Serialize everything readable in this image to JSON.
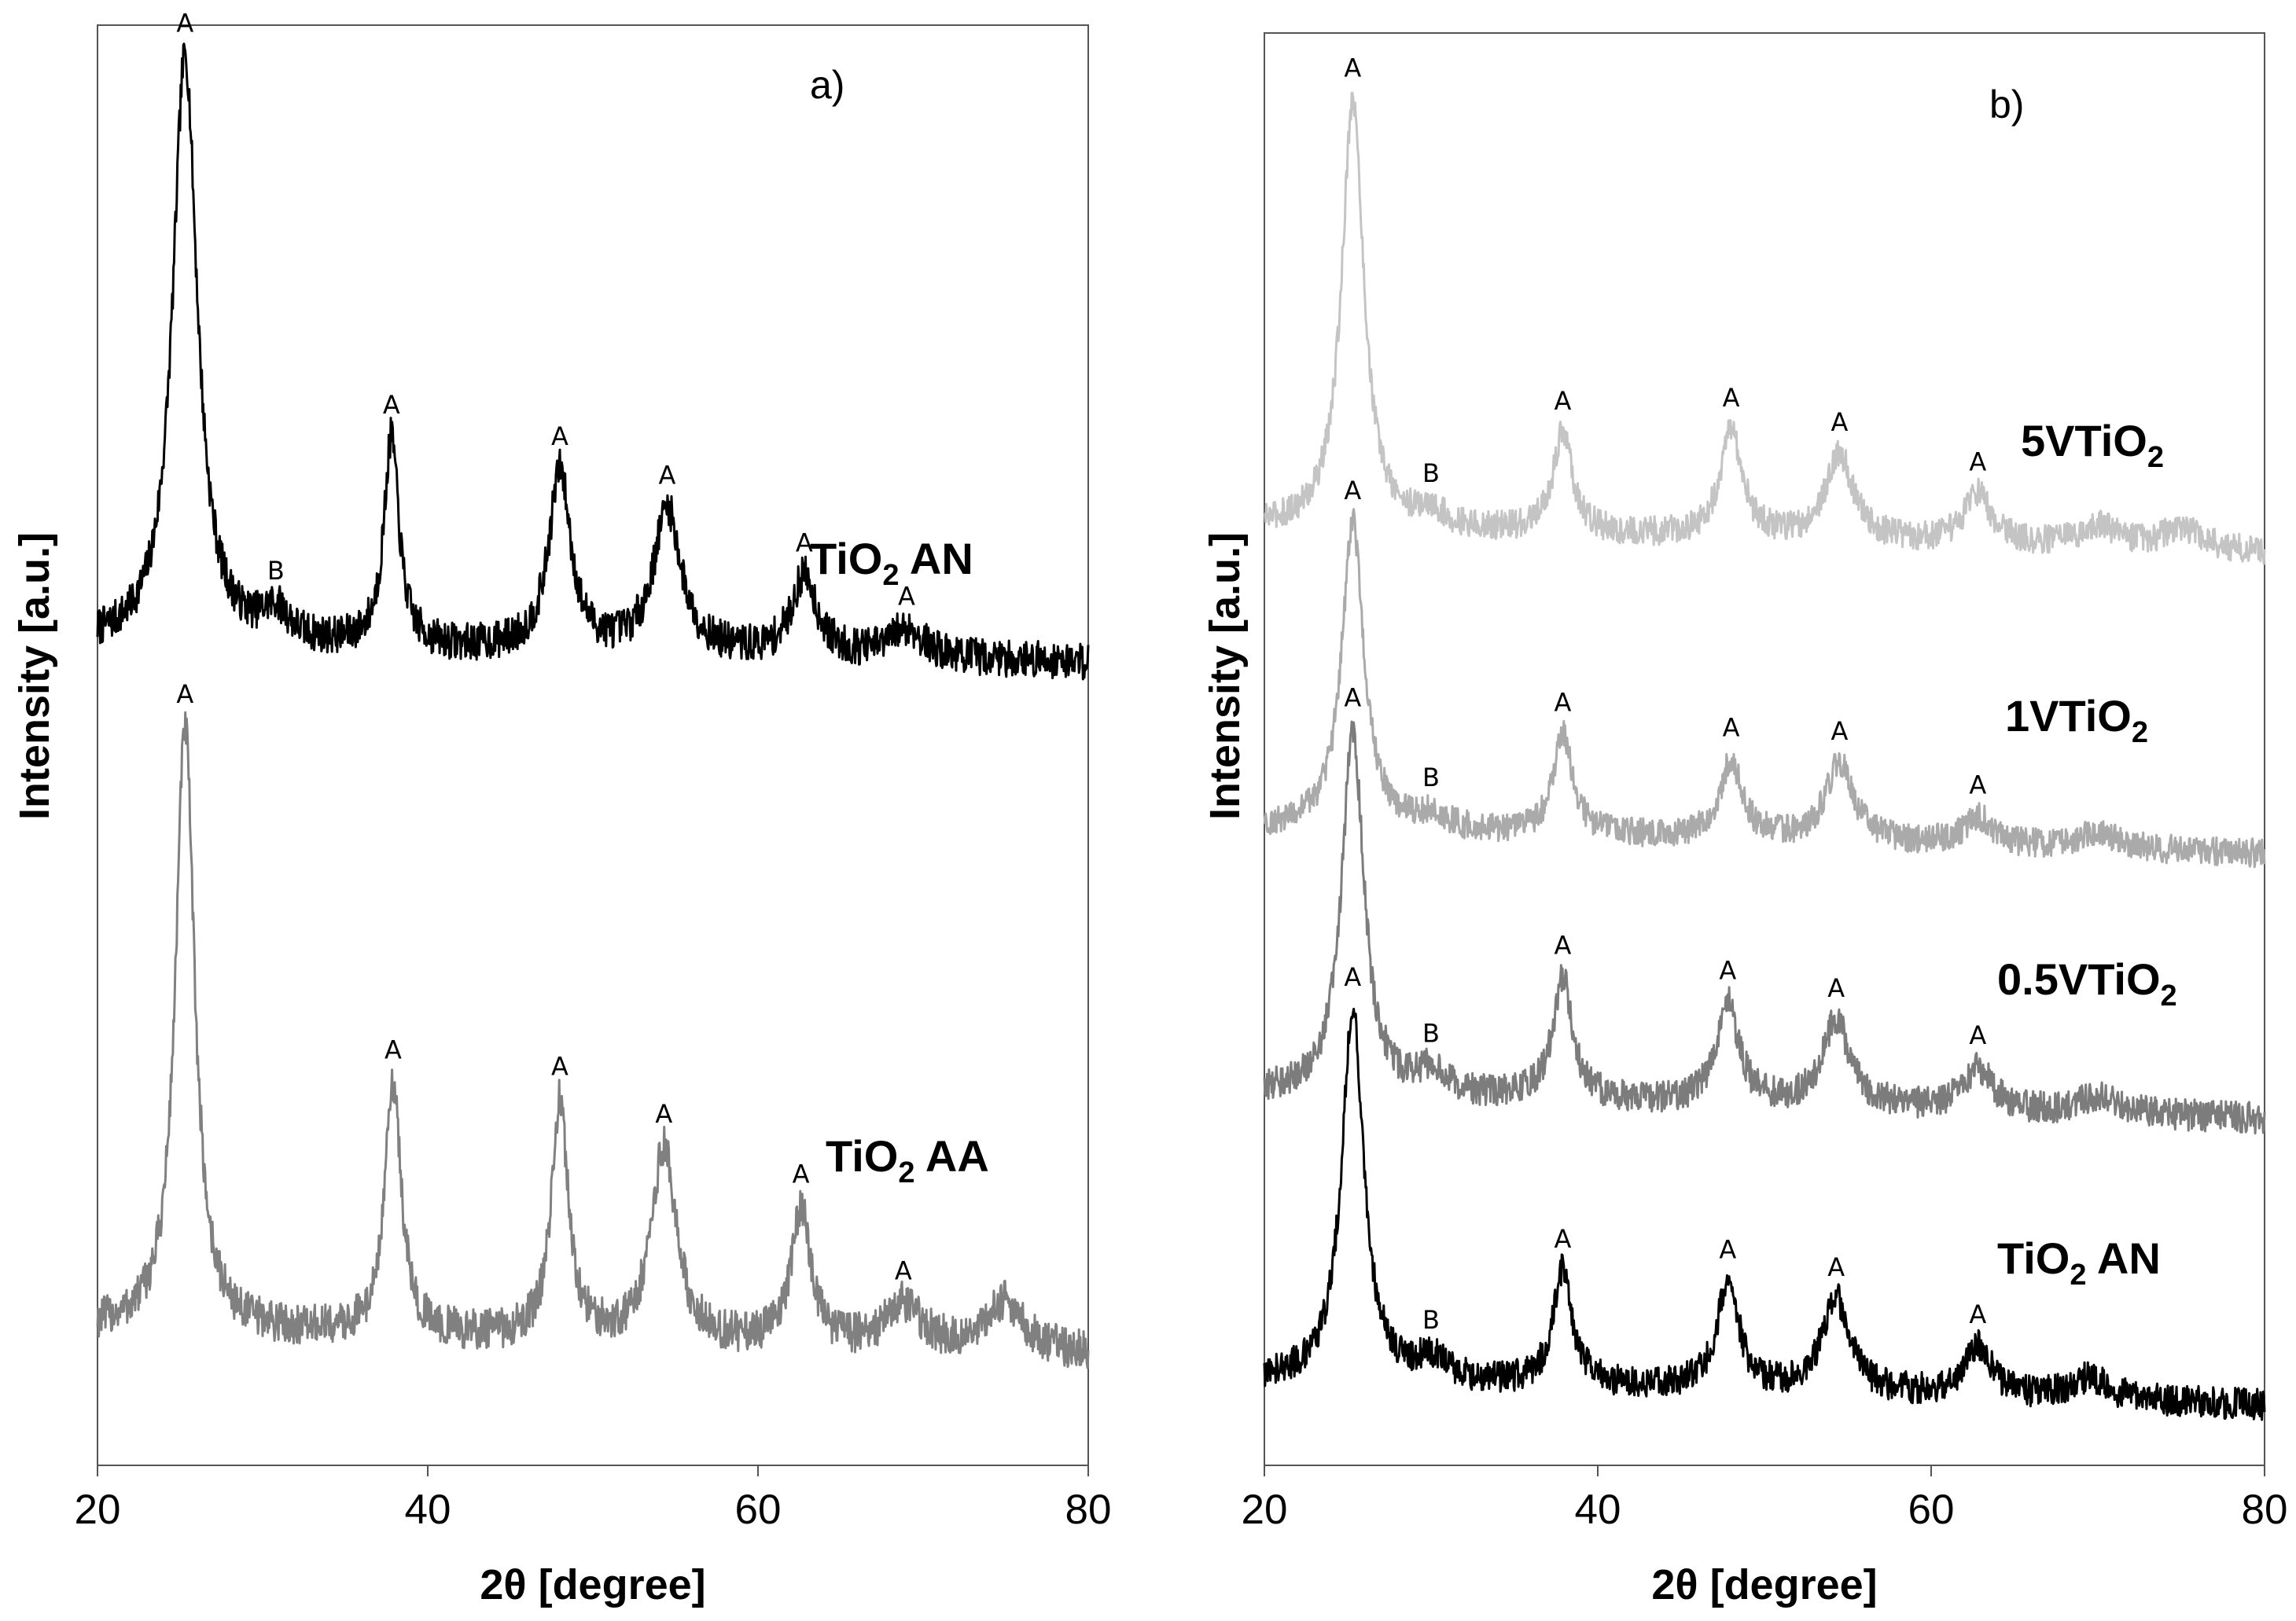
{
  "chart_data": [
    {
      "type": "line",
      "panel_label": "a)",
      "xlabel": "2θ [degree]",
      "ylabel": "Intensity [a.u.]",
      "xlim": [
        20,
        80
      ],
      "xticks": [
        "20",
        "40",
        "60",
        "80"
      ],
      "ylim": [
        0,
        10
      ],
      "series": [
        {
          "name": "TiO2 AN",
          "label_main": "TiO",
          "label_sub": "2",
          "label_tail": " AN",
          "color": "#000000",
          "baseline": 5.7,
          "slope": -0.002,
          "noise": 0.13,
          "peaks": [
            {
              "two_theta": 25.3,
              "height": 4.1,
              "width": 0.9,
              "annotation": "A"
            },
            {
              "two_theta": 30.8,
              "height": 0.2,
              "width": 1.0,
              "annotation": "B"
            },
            {
              "two_theta": 37.8,
              "height": 1.45,
              "width": 0.55,
              "annotation": "A"
            },
            {
              "two_theta": 48.0,
              "height": 1.25,
              "width": 0.8,
              "annotation": "A"
            },
            {
              "two_theta": 54.5,
              "height": 1.0,
              "width": 1.0,
              "annotation": "A"
            },
            {
              "two_theta": 62.8,
              "height": 0.55,
              "width": 0.9,
              "annotation": "A"
            },
            {
              "two_theta": 69.0,
              "height": 0.2,
              "width": 1.2,
              "annotation": "A"
            }
          ]
        },
        {
          "name": "TiO2 AA",
          "label_main": "TiO",
          "label_sub": "2",
          "label_tail": " AA",
          "color": "#808080",
          "baseline": 0.95,
          "slope": -0.003,
          "noise": 0.14,
          "peaks": [
            {
              "two_theta": 25.3,
              "height": 4.2,
              "width": 0.7,
              "annotation": "A"
            },
            {
              "two_theta": 37.9,
              "height": 1.75,
              "width": 0.6,
              "annotation": "A"
            },
            {
              "two_theta": 48.0,
              "height": 1.65,
              "width": 0.6,
              "annotation": "A"
            },
            {
              "two_theta": 54.3,
              "height": 1.35,
              "width": 0.9,
              "annotation": "A"
            },
            {
              "two_theta": 62.6,
              "height": 0.95,
              "width": 0.7,
              "annotation": "A"
            },
            {
              "two_theta": 68.8,
              "height": 0.3,
              "width": 1.3,
              "annotation": "A"
            },
            {
              "two_theta": 75.0,
              "height": 0.35,
              "width": 1.3,
              "annotation": ""
            }
          ]
        }
      ]
    },
    {
      "type": "line",
      "panel_label": "b)",
      "xlabel": "2θ [degree]",
      "ylabel": "Intensity [a.u.]",
      "xlim": [
        20,
        80
      ],
      "xticks": [
        "20",
        "40",
        "60",
        "80"
      ],
      "ylim": [
        0,
        10
      ],
      "series": [
        {
          "name": "5VTiO2",
          "label_main": "5VTiO",
          "label_sub": "2",
          "label_tail": "",
          "color": "#c4c4c4",
          "baseline": 6.55,
          "slope": -0.003,
          "noise": 0.1,
          "peaks": [
            {
              "two_theta": 25.3,
              "height": 3.0,
              "width": 0.8,
              "annotation": "A"
            },
            {
              "two_theta": 30.0,
              "height": 0.1,
              "width": 1.0,
              "annotation": "B"
            },
            {
              "two_theta": 37.9,
              "height": 0.7,
              "width": 0.7,
              "annotation": "A"
            },
            {
              "two_theta": 48.0,
              "height": 0.75,
              "width": 0.8,
              "annotation": "A"
            },
            {
              "two_theta": 54.5,
              "height": 0.6,
              "width": 1.0,
              "annotation": "A"
            },
            {
              "two_theta": 62.8,
              "height": 0.35,
              "width": 1.0,
              "annotation": "A"
            },
            {
              "two_theta": 70.0,
              "height": 0.15,
              "width": 1.4,
              "annotation": ""
            },
            {
              "two_theta": 75.0,
              "height": 0.15,
              "width": 1.4,
              "annotation": ""
            }
          ]
        },
        {
          "name": "1VTiO2",
          "label_main": "1VTiO",
          "label_sub": "2",
          "label_tail": "",
          "color": "#aaaaaa",
          "baseline": 4.45,
          "slope": -0.003,
          "noise": 0.1,
          "peaks": [
            {
              "two_theta": 25.3,
              "height": 2.15,
              "width": 0.8,
              "annotation": "A"
            },
            {
              "two_theta": 30.0,
              "height": 0.1,
              "width": 1.0,
              "annotation": "B"
            },
            {
              "two_theta": 37.9,
              "height": 0.7,
              "width": 0.7,
              "annotation": "A"
            },
            {
              "two_theta": 48.0,
              "height": 0.55,
              "width": 0.8,
              "annotation": "A"
            },
            {
              "two_theta": 54.5,
              "height": 0.55,
              "width": 1.0,
              "annotation": "A"
            },
            {
              "two_theta": 62.8,
              "height": 0.2,
              "width": 1.0,
              "annotation": "A"
            },
            {
              "two_theta": 70.0,
              "height": 0.12,
              "width": 1.4,
              "annotation": ""
            }
          ]
        },
        {
          "name": "0.5VTiO2",
          "label_main": "0.5VTiO",
          "label_sub": "2",
          "label_tail": "",
          "color": "#7c7c7c",
          "baseline": 2.6,
          "slope": -0.003,
          "noise": 0.11,
          "peaks": [
            {
              "two_theta": 25.3,
              "height": 2.55,
              "width": 0.8,
              "annotation": "A"
            },
            {
              "two_theta": 30.0,
              "height": 0.15,
              "width": 1.0,
              "annotation": "B"
            },
            {
              "two_theta": 37.9,
              "height": 0.85,
              "width": 0.7,
              "annotation": "A"
            },
            {
              "two_theta": 47.8,
              "height": 0.7,
              "width": 0.8,
              "annotation": "A"
            },
            {
              "two_theta": 54.3,
              "height": 0.6,
              "width": 1.0,
              "annotation": "A"
            },
            {
              "two_theta": 62.8,
              "height": 0.3,
              "width": 1.0,
              "annotation": "A"
            },
            {
              "two_theta": 70.0,
              "height": 0.12,
              "width": 1.4,
              "annotation": ""
            }
          ]
        },
        {
          "name": "TiO2 AN",
          "label_main": "TiO",
          "label_sub": "2",
          "label_tail": " AN",
          "color": "#000000",
          "baseline": 0.6,
          "slope": -0.003,
          "noise": 0.11,
          "peaks": [
            {
              "two_theta": 25.3,
              "height": 2.6,
              "width": 0.8,
              "annotation": "A"
            },
            {
              "two_theta": 30.0,
              "height": 0.15,
              "width": 1.0,
              "annotation": "B"
            },
            {
              "two_theta": 37.9,
              "height": 0.8,
              "width": 0.7,
              "annotation": "A"
            },
            {
              "two_theta": 47.8,
              "height": 0.75,
              "width": 0.8,
              "annotation": "A"
            },
            {
              "two_theta": 54.3,
              "height": 0.65,
              "width": 1.0,
              "annotation": "A"
            },
            {
              "two_theta": 62.8,
              "height": 0.35,
              "width": 1.0,
              "annotation": "A"
            },
            {
              "two_theta": 69.5,
              "height": 0.15,
              "width": 1.4,
              "annotation": ""
            }
          ]
        }
      ]
    }
  ]
}
